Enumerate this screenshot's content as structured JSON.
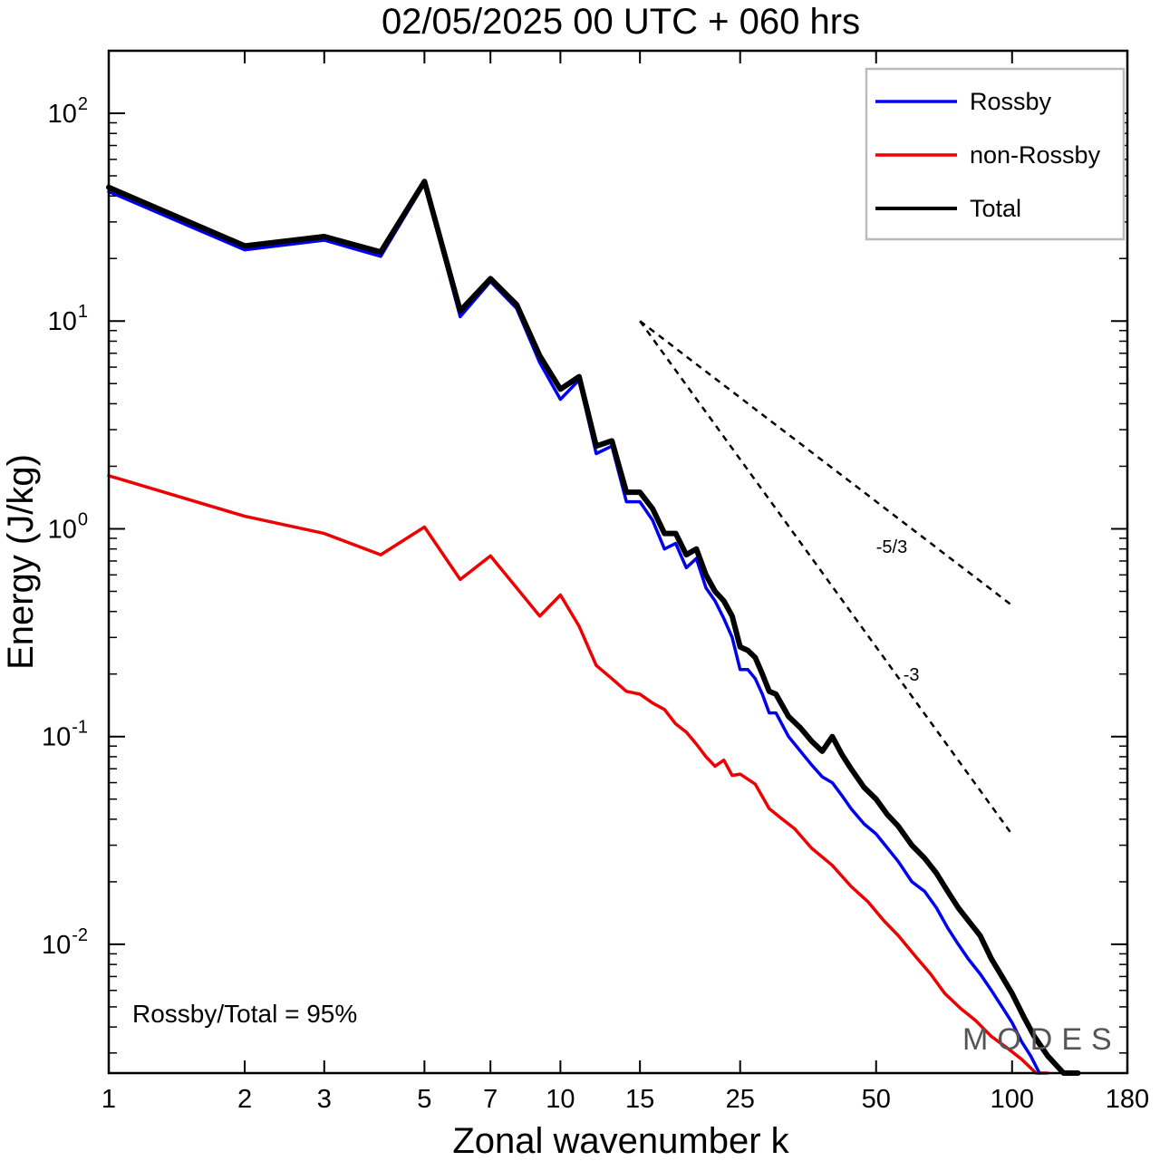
{
  "chart_data": {
    "type": "line",
    "title": "02/05/2025  00 UTC  + 060 hrs",
    "xlabel": "Zonal wavenumber k",
    "ylabel": "Energy (J/kg)",
    "x_scale": "log",
    "y_scale": "log",
    "xlim": [
      1,
      180
    ],
    "ylim": [
      0.0024,
      200
    ],
    "x_ticks": [
      {
        "value": 1,
        "label": "1"
      },
      {
        "value": 2,
        "label": "2"
      },
      {
        "value": 3,
        "label": "3"
      },
      {
        "value": 5,
        "label": "5"
      },
      {
        "value": 7,
        "label": "7"
      },
      {
        "value": 10,
        "label": "10"
      },
      {
        "value": 15,
        "label": "15"
      },
      {
        "value": 25,
        "label": "25"
      },
      {
        "value": 50,
        "label": "50"
      },
      {
        "value": 100,
        "label": "100"
      },
      {
        "value": 180,
        "label": "180"
      }
    ],
    "y_ticks": [
      {
        "value": 0.01,
        "base": "10",
        "exp": "-2"
      },
      {
        "value": 0.1,
        "base": "10",
        "exp": "-1"
      },
      {
        "value": 1,
        "base": "10",
        "exp": "0"
      },
      {
        "value": 10,
        "base": "10",
        "exp": "1"
      },
      {
        "value": 100,
        "base": "10",
        "exp": "2"
      }
    ],
    "legend_position": "top-right",
    "series": [
      {
        "name": "Rossby",
        "color": "#0000ee",
        "points": [
          [
            1,
            42
          ],
          [
            2,
            22
          ],
          [
            3,
            24.5
          ],
          [
            4,
            20.5
          ],
          [
            5,
            46
          ],
          [
            6,
            10.5
          ],
          [
            7,
            15.5
          ],
          [
            8,
            11.5
          ],
          [
            9,
            6.3
          ],
          [
            10,
            4.2
          ],
          [
            11,
            5.2
          ],
          [
            12,
            2.3
          ],
          [
            13,
            2.5
          ],
          [
            14,
            1.35
          ],
          [
            15,
            1.35
          ],
          [
            16,
            1.1
          ],
          [
            17,
            0.8
          ],
          [
            18,
            0.85
          ],
          [
            19,
            0.65
          ],
          [
            20,
            0.72
          ],
          [
            21,
            0.52
          ],
          [
            22,
            0.45
          ],
          [
            23,
            0.37
          ],
          [
            24,
            0.3
          ],
          [
            25,
            0.21
          ],
          [
            26,
            0.21
          ],
          [
            27,
            0.19
          ],
          [
            28,
            0.16
          ],
          [
            29,
            0.13
          ],
          [
            30,
            0.13
          ],
          [
            32,
            0.1
          ],
          [
            34,
            0.085
          ],
          [
            36,
            0.073
          ],
          [
            38,
            0.064
          ],
          [
            40,
            0.06
          ],
          [
            42,
            0.052
          ],
          [
            44,
            0.045
          ],
          [
            47,
            0.038
          ],
          [
            50,
            0.034
          ],
          [
            53,
            0.029
          ],
          [
            56,
            0.025
          ],
          [
            60,
            0.02
          ],
          [
            64,
            0.018
          ],
          [
            68,
            0.015
          ],
          [
            72,
            0.012
          ],
          [
            76,
            0.01
          ],
          [
            80,
            0.0085
          ],
          [
            85,
            0.0072
          ],
          [
            90,
            0.006
          ],
          [
            95,
            0.005
          ],
          [
            100,
            0.0042
          ],
          [
            105,
            0.0034
          ],
          [
            110,
            0.0029
          ],
          [
            115,
            0.0024
          ]
        ]
      },
      {
        "name": "non-Rossby",
        "color": "#ee0000",
        "points": [
          [
            1,
            1.8
          ],
          [
            2,
            1.15
          ],
          [
            3,
            0.95
          ],
          [
            4,
            0.75
          ],
          [
            5,
            1.02
          ],
          [
            6,
            0.57
          ],
          [
            7,
            0.74
          ],
          [
            8,
            0.52
          ],
          [
            9,
            0.38
          ],
          [
            10,
            0.48
          ],
          [
            11,
            0.34
          ],
          [
            12,
            0.22
          ],
          [
            13,
            0.19
          ],
          [
            14,
            0.165
          ],
          [
            15,
            0.16
          ],
          [
            16,
            0.145
          ],
          [
            17,
            0.135
          ],
          [
            18,
            0.115
          ],
          [
            19,
            0.105
          ],
          [
            20,
            0.092
          ],
          [
            21,
            0.08
          ],
          [
            22,
            0.072
          ],
          [
            23,
            0.077
          ],
          [
            24,
            0.065
          ],
          [
            25,
            0.066
          ],
          [
            27,
            0.059
          ],
          [
            29,
            0.045
          ],
          [
            31,
            0.04
          ],
          [
            33,
            0.036
          ],
          [
            36,
            0.029
          ],
          [
            40,
            0.024
          ],
          [
            44,
            0.019
          ],
          [
            48,
            0.016
          ],
          [
            52,
            0.013
          ],
          [
            56,
            0.011
          ],
          [
            61,
            0.0088
          ],
          [
            66,
            0.0072
          ],
          [
            71,
            0.0058
          ],
          [
            77,
            0.0049
          ],
          [
            83,
            0.0043
          ],
          [
            90,
            0.0036
          ],
          [
            97,
            0.0032
          ],
          [
            105,
            0.0028
          ],
          [
            113,
            0.0024
          ],
          [
            120,
            0.0021
          ]
        ]
      },
      {
        "name": "Total",
        "color": "#000000",
        "points": [
          [
            1,
            44
          ],
          [
            2,
            23
          ],
          [
            3,
            25.5
          ],
          [
            4,
            21.5
          ],
          [
            5,
            47
          ],
          [
            6,
            11.2
          ],
          [
            7,
            16
          ],
          [
            8,
            12
          ],
          [
            9,
            6.8
          ],
          [
            10,
            4.7
          ],
          [
            11,
            5.4
          ],
          [
            12,
            2.5
          ],
          [
            13,
            2.65
          ],
          [
            14,
            1.5
          ],
          [
            15,
            1.5
          ],
          [
            16,
            1.25
          ],
          [
            17,
            0.95
          ],
          [
            18,
            0.95
          ],
          [
            19,
            0.75
          ],
          [
            20,
            0.8
          ],
          [
            21,
            0.6
          ],
          [
            22,
            0.5
          ],
          [
            23,
            0.45
          ],
          [
            24,
            0.38
          ],
          [
            25,
            0.27
          ],
          [
            26,
            0.26
          ],
          [
            27,
            0.24
          ],
          [
            28,
            0.2
          ],
          [
            29,
            0.165
          ],
          [
            30,
            0.16
          ],
          [
            32,
            0.125
          ],
          [
            34,
            0.11
          ],
          [
            36,
            0.095
          ],
          [
            38,
            0.085
          ],
          [
            40,
            0.1
          ],
          [
            42,
            0.082
          ],
          [
            44,
            0.07
          ],
          [
            47,
            0.057
          ],
          [
            50,
            0.05
          ],
          [
            53,
            0.042
          ],
          [
            56,
            0.037
          ],
          [
            60,
            0.03
          ],
          [
            64,
            0.026
          ],
          [
            68,
            0.022
          ],
          [
            72,
            0.018
          ],
          [
            76,
            0.015
          ],
          [
            80,
            0.013
          ],
          [
            85,
            0.011
          ],
          [
            90,
            0.0085
          ],
          [
            95,
            0.007
          ],
          [
            100,
            0.0058
          ],
          [
            106,
            0.0045
          ],
          [
            112,
            0.0036
          ],
          [
            120,
            0.0029
          ],
          [
            130,
            0.0023
          ],
          [
            140,
            0.002
          ]
        ]
      }
    ],
    "reference_lines": [
      {
        "label": "-5/3",
        "points": [
          [
            15,
            10
          ],
          [
            100,
            0.4277
          ]
        ]
      },
      {
        "label": "-3",
        "points": [
          [
            15,
            10
          ],
          [
            100,
            0.03375
          ]
        ]
      }
    ],
    "annotation": "Rossby/Total = 95%",
    "watermark": "MODES"
  }
}
